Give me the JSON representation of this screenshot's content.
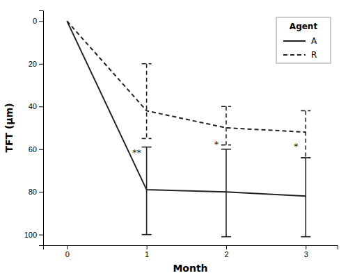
{
  "chart_data": {
    "type": "line",
    "x": [
      0,
      1,
      2,
      3
    ],
    "xlabel": "Month",
    "ylabel": "TFT (μm)",
    "xlim": [
      -0.3,
      3.4
    ],
    "xticks": [
      0,
      1,
      2,
      3
    ],
    "ylim": [
      105,
      -5
    ],
    "yticks": [
      0,
      20,
      40,
      60,
      80,
      100
    ],
    "color": "#222222",
    "legend": "upper right",
    "legend_title": "Agent",
    "series": [
      {
        "name": "A",
        "line_style": "solid",
        "values": [
          0,
          79,
          80,
          82
        ],
        "error_minus": [
          0,
          20,
          20,
          18
        ],
        "error_plus": [
          0,
          21,
          21,
          19
        ]
      },
      {
        "name": "R",
        "line_style": "dashed",
        "values": [
          0,
          42,
          50,
          52
        ],
        "error_minus": [
          0,
          22,
          10,
          10
        ],
        "error_plus": [
          0,
          13,
          8,
          12
        ]
      }
    ],
    "annotations": [
      {
        "x": 1,
        "y": 62,
        "text": "**"
      },
      {
        "x": 2,
        "y": 58,
        "text": "*"
      },
      {
        "x": 3,
        "y": 59,
        "text": "*"
      }
    ]
  }
}
